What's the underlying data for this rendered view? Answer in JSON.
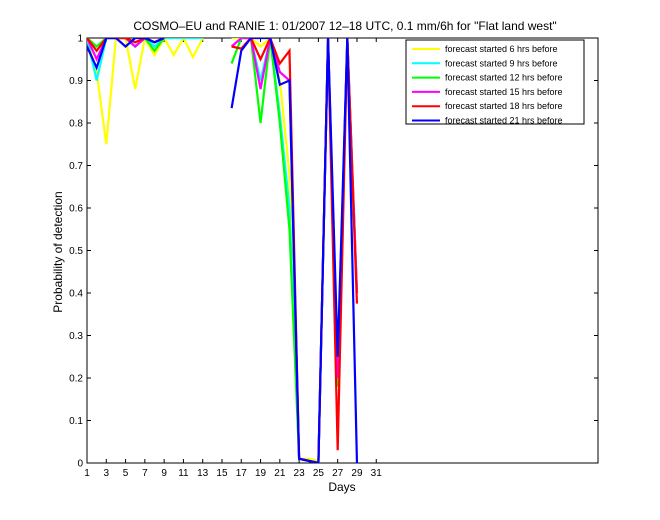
{
  "chart_data": {
    "type": "line",
    "title": "COSMO–EU and RANIE 1: 01/2007 12–18 UTC, 0.1 mm/6h for \"Flat land west\"",
    "xlabel": "Days",
    "ylabel": "Probability of detection",
    "xlim": [
      1,
      54
    ],
    "ylim": [
      0,
      1
    ],
    "xticks": [
      1,
      3,
      5,
      7,
      9,
      11,
      13,
      15,
      17,
      19,
      21,
      23,
      25,
      27,
      29,
      31
    ],
    "yticks": [
      0,
      0.1,
      0.2,
      0.3,
      0.4,
      0.5,
      0.6,
      0.7,
      0.8,
      0.9,
      1
    ],
    "grid": false,
    "legend_position": "top-right",
    "series": [
      {
        "name": "forecast started 6 hrs before",
        "color": "#ffff00",
        "x": [
          1,
          2,
          3,
          4,
          5,
          6,
          7,
          8,
          9,
          10,
          11,
          12,
          13,
          14,
          15,
          16,
          17,
          18,
          19,
          20,
          21,
          22,
          23,
          24,
          25,
          26,
          27,
          28,
          29,
          30
        ],
        "y": [
          1,
          0.92,
          0.75,
          1,
          1,
          0.88,
          1,
          0.96,
          1,
          0.96,
          1,
          0.955,
          1,
          null,
          null,
          1,
          1,
          1,
          0.98,
          1,
          0.9,
          0.68,
          0.01,
          0.01,
          0.005,
          1,
          0.18,
          1,
          0.4,
          null
        ]
      },
      {
        "name": "forecast started 9 hrs before",
        "color": "#00ffff",
        "x": [
          1,
          2,
          3,
          4,
          5,
          6,
          7,
          8,
          9,
          10,
          11,
          12,
          13,
          14,
          15,
          16,
          17,
          18,
          19,
          20,
          21,
          22,
          23,
          24,
          25,
          26,
          27,
          28,
          29,
          30
        ],
        "y": [
          1,
          0.9,
          1,
          1,
          1,
          0.98,
          1,
          0.98,
          1,
          1,
          1,
          1,
          1,
          null,
          null,
          null,
          1,
          1,
          0.9,
          1,
          0.82,
          0.6,
          0.01,
          0.005,
          0,
          1,
          0.18,
          1,
          0.4,
          null
        ]
      },
      {
        "name": "forecast started 12 hrs before",
        "color": "#00ff00",
        "x": [
          1,
          2,
          3,
          4,
          5,
          6,
          7,
          8,
          9,
          10,
          11,
          12,
          13,
          14,
          15,
          16,
          17,
          18,
          19,
          20,
          21,
          22,
          23,
          24,
          25,
          26,
          27,
          28,
          29,
          30
        ],
        "y": [
          1,
          0.98,
          1,
          1,
          1,
          0.98,
          1,
          0.97,
          1,
          null,
          null,
          null,
          null,
          null,
          null,
          0.94,
          1,
          1,
          0.8,
          1,
          0.8,
          0.55,
          0.01,
          0.005,
          0,
          1,
          0.18,
          1,
          0.4,
          null
        ]
      },
      {
        "name": "forecast started 15 hrs before",
        "color": "#ff00ff",
        "x": [
          1,
          2,
          3,
          4,
          5,
          6,
          7,
          8,
          9,
          10,
          11,
          12,
          13,
          14,
          15,
          16,
          17,
          18,
          19,
          20,
          21,
          22,
          23,
          24,
          25,
          26,
          27,
          28,
          29,
          30
        ],
        "y": [
          1,
          0.95,
          1,
          1,
          1,
          0.98,
          1,
          0.99,
          1,
          null,
          null,
          null,
          null,
          null,
          null,
          0.98,
          1,
          1,
          0.88,
          1,
          0.92,
          0.9,
          0.01,
          0.005,
          0,
          1,
          0.2,
          1,
          0.4,
          null
        ]
      },
      {
        "name": "forecast started 18 hrs before",
        "color": "#ff0000",
        "x": [
          1,
          2,
          3,
          4,
          5,
          6,
          7,
          8,
          9,
          10,
          11,
          12,
          13,
          14,
          15,
          16,
          17,
          18,
          19,
          20,
          21,
          22,
          23,
          24,
          25,
          26,
          27,
          28,
          29,
          30
        ],
        "y": [
          1,
          0.97,
          1,
          1,
          1,
          0.99,
          1,
          0.99,
          1,
          null,
          null,
          null,
          null,
          null,
          null,
          0.98,
          0.975,
          1,
          0.95,
          1,
          0.94,
          0.97,
          0.01,
          0.005,
          0,
          1,
          0.03,
          1,
          0.375,
          null
        ]
      },
      {
        "name": "forecast started 21 hrs before",
        "color": "#0000ff",
        "x": [
          1,
          2,
          3,
          4,
          5,
          6,
          7,
          8,
          9,
          10,
          11,
          12,
          13,
          14,
          15,
          16,
          17,
          18,
          19,
          20,
          21,
          22,
          23,
          24,
          25,
          26,
          27,
          28,
          29,
          30
        ],
        "y": [
          0.98,
          0.93,
          1,
          1,
          0.98,
          1,
          1,
          0.99,
          1,
          null,
          null,
          null,
          null,
          null,
          null,
          0.835,
          0.97,
          1,
          1,
          1,
          0.89,
          0.9,
          0.01,
          0.005,
          0,
          1,
          0.25,
          1,
          0,
          null
        ]
      }
    ]
  }
}
